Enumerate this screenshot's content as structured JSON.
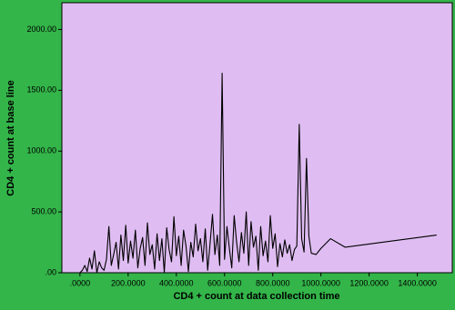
{
  "chart_data": {
    "type": "line",
    "x_label": "CD4 + count at data collection time",
    "y_label": "CD4 + count at base line",
    "color": "#000000",
    "background": "#33b549",
    "plot_background": "#dfbdf2",
    "x": [
      0,
      10,
      20,
      30,
      40,
      50,
      60,
      70,
      80,
      90,
      100,
      110,
      120,
      130,
      140,
      150,
      160,
      170,
      180,
      190,
      200,
      210,
      220,
      230,
      240,
      250,
      260,
      270,
      280,
      290,
      300,
      310,
      320,
      330,
      340,
      350,
      360,
      370,
      380,
      390,
      400,
      410,
      420,
      430,
      440,
      450,
      460,
      470,
      480,
      490,
      500,
      510,
      520,
      530,
      540,
      550,
      560,
      570,
      580,
      590,
      600,
      610,
      620,
      630,
      640,
      650,
      660,
      670,
      680,
      690,
      700,
      710,
      720,
      730,
      740,
      750,
      760,
      770,
      780,
      790,
      800,
      810,
      820,
      830,
      840,
      850,
      860,
      870,
      880,
      890,
      900,
      910,
      920,
      930,
      940,
      950,
      960,
      980,
      1000,
      1040,
      1100,
      1480
    ],
    "values": [
      0,
      20,
      60,
      10,
      120,
      30,
      180,
      0,
      90,
      40,
      20,
      110,
      380,
      60,
      150,
      250,
      30,
      310,
      100,
      390,
      80,
      260,
      120,
      350,
      40,
      200,
      290,
      60,
      410,
      150,
      230,
      30,
      320,
      100,
      280,
      0,
      370,
      190,
      90,
      460,
      140,
      300,
      60,
      350,
      220,
      10,
      250,
      130,
      400,
      180,
      280,
      90,
      360,
      20,
      240,
      480,
      150,
      310,
      60,
      1640,
      110,
      380,
      200,
      40,
      470,
      250,
      90,
      330,
      160,
      500,
      60,
      420,
      210,
      300,
      20,
      380,
      140,
      260,
      90,
      470,
      200,
      320,
      50,
      240,
      130,
      270,
      160,
      230,
      100,
      190,
      220,
      1220,
      280,
      170,
      940,
      300,
      160,
      150,
      200,
      280,
      210,
      310
    ],
    "xlim": [
      -75,
      1545
    ],
    "ylim": [
      0,
      2220
    ],
    "xticks": [
      {
        "value": 0,
        "label": ".0000"
      },
      {
        "value": 200,
        "label": "200.0000"
      },
      {
        "value": 400,
        "label": "400.0000"
      },
      {
        "value": 600,
        "label": "600.0000"
      },
      {
        "value": 800,
        "label": "800.0000"
      },
      {
        "value": 1000,
        "label": "1000.0000"
      },
      {
        "value": 1200,
        "label": "1200.0000"
      },
      {
        "value": 1400,
        "label": "1400.0000"
      }
    ],
    "yticks": [
      {
        "value": 0,
        "label": ".00"
      },
      {
        "value": 500,
        "label": "500.00"
      },
      {
        "value": 1000,
        "label": "1000.00"
      },
      {
        "value": 1500,
        "label": "1500.00"
      },
      {
        "value": 2000,
        "label": "2000.00"
      }
    ]
  }
}
